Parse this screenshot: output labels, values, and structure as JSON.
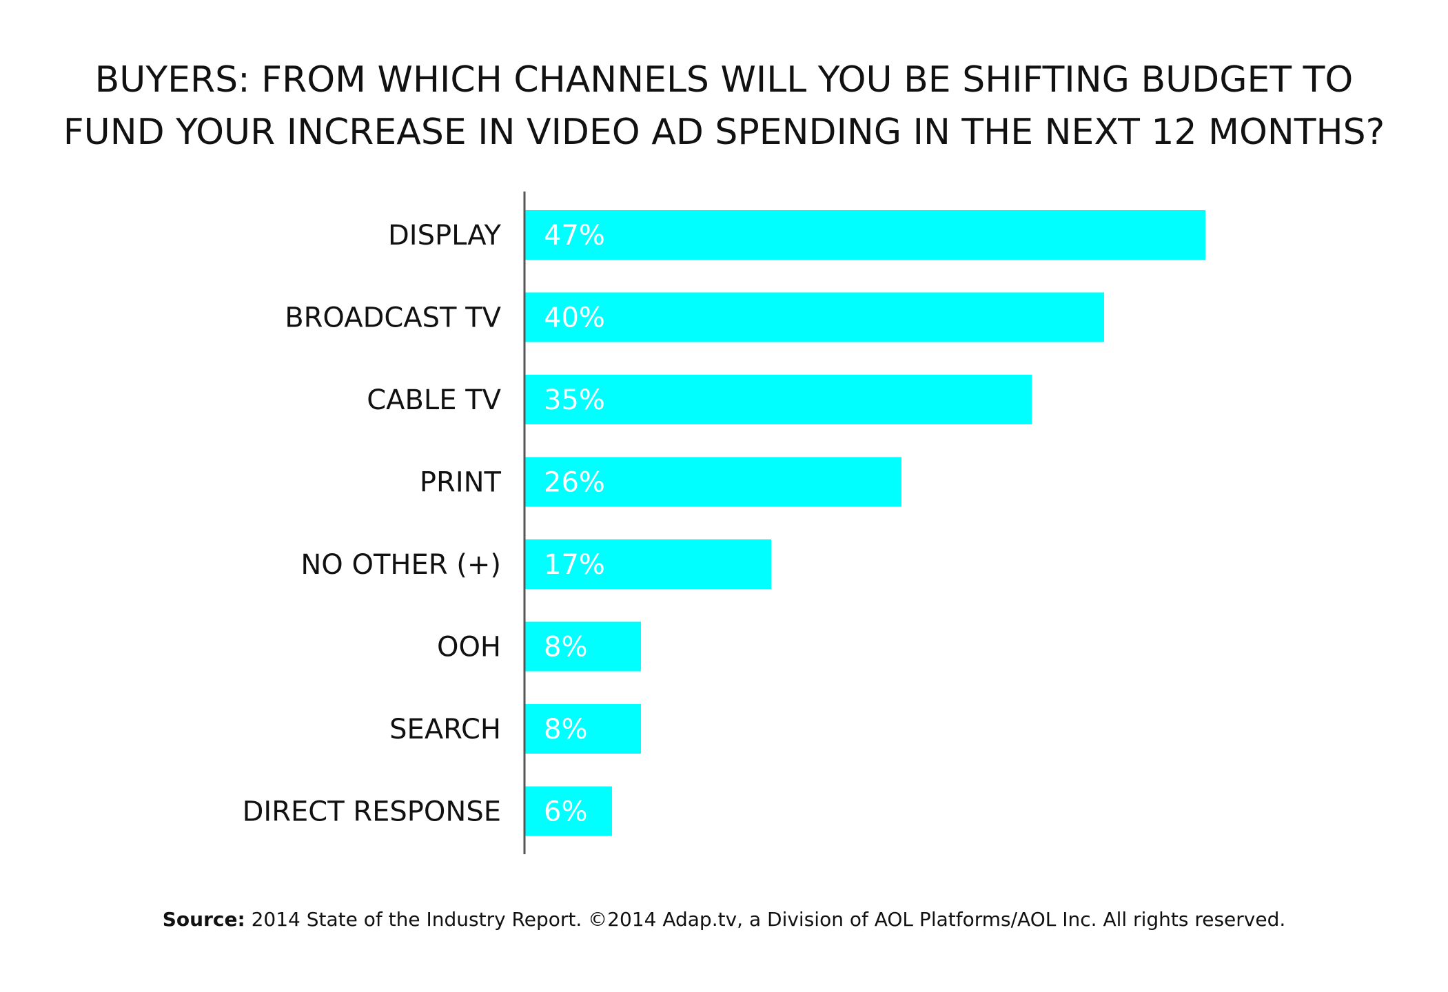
{
  "title": {
    "line1": "BUYERS: FROM WHICH CHANNELS WILL YOU BE SHIFTING BUDGET TO",
    "line2": "FUND YOUR INCREASE IN VIDEO AD SPENDING IN THE NEXT 12 MONTHS?"
  },
  "source": {
    "label": "Source:",
    "text": " 2014 State of the Industry Report. ©2014 Adap.tv, a Division of AOL Platforms/AOL Inc. All rights reserved."
  },
  "colors": {
    "bar": "#00FFFF",
    "axis": "#555555",
    "text": "#111111",
    "value_text": "#FFFFFF"
  },
  "chart_data": {
    "type": "bar",
    "orientation": "horizontal",
    "categories": [
      "DISPLAY",
      "BROADCAST TV",
      "CABLE TV",
      "PRINT",
      "NO OTHER (+)",
      "OOH",
      "SEARCH",
      "DIRECT RESPONSE"
    ],
    "values": [
      47,
      40,
      35,
      26,
      17,
      8,
      8,
      6
    ],
    "value_labels": [
      "47%",
      "40%",
      "35%",
      "26%",
      "17%",
      "8%",
      "8%",
      "6%"
    ],
    "unit": "%",
    "xlim": [
      0,
      60
    ],
    "grid": false,
    "legend": "none"
  }
}
